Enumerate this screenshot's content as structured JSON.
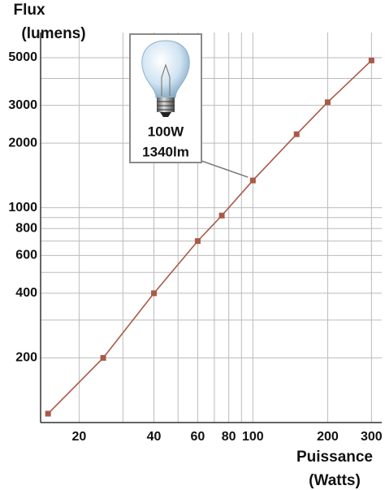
{
  "chart_data": {
    "type": "line",
    "x_label": [
      "Puissance",
      "(Watts)"
    ],
    "y_label": [
      "Flux",
      "(lumens)"
    ],
    "annotation": [
      "100W",
      "1340lm"
    ],
    "annotation_point": 5,
    "x": [
      15,
      25,
      40,
      60,
      75,
      100,
      150,
      200,
      300
    ],
    "series": [
      {
        "color": "#a85a48",
        "values": [
          110,
          200,
          400,
          700,
          920,
          1340,
          2200,
          3100,
          4850
        ]
      }
    ],
    "log_x": true,
    "log_y": true,
    "xlim": [
      14,
      330
    ],
    "ylim": [
      100,
      5500
    ],
    "xticks": [
      20,
      40,
      60,
      80,
      100,
      200,
      300
    ],
    "yticks": [
      200,
      400,
      600,
      800,
      1000,
      2000,
      3000,
      5000
    ],
    "x_minor_grid": [
      30,
      50,
      70,
      90
    ],
    "y_minor_grid": [
      300,
      500,
      700,
      900,
      4000
    ],
    "grid": true,
    "grid_color": "#bbbbbb"
  }
}
